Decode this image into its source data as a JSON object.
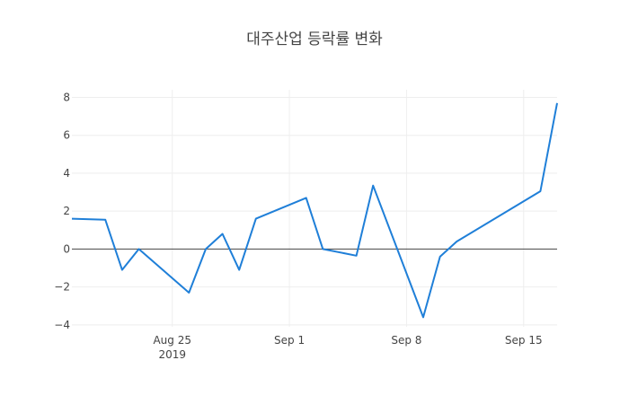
{
  "chart_data": {
    "type": "line",
    "title": "대주산업 등락률 변화",
    "xlabel": "",
    "ylabel": "",
    "x_range": [
      "2019-08-19",
      "2019-09-17"
    ],
    "ylim": [
      -4.1,
      8.4
    ],
    "y_ticks": [
      8,
      6,
      4,
      2,
      0,
      -2,
      -4
    ],
    "y_tick_labels": [
      "8",
      "6",
      "4",
      "2",
      "0",
      "−2",
      "−4"
    ],
    "x_ticks": [
      {
        "date": "2019-08-25",
        "label": "Aug 25",
        "sublabel": "2019"
      },
      {
        "date": "2019-09-01",
        "label": "Sep 1",
        "sublabel": ""
      },
      {
        "date": "2019-09-08",
        "label": "Sep 8",
        "sublabel": ""
      },
      {
        "date": "2019-09-15",
        "label": "Sep 15",
        "sublabel": ""
      }
    ],
    "grid": true,
    "zero_line": true,
    "line_color": "#1f7fd8",
    "series": [
      {
        "x": [
          "2019-08-19",
          "2019-08-21",
          "2019-08-22",
          "2019-08-23",
          "2019-08-26",
          "2019-08-27",
          "2019-08-28",
          "2019-08-29",
          "2019-08-30",
          "2019-09-02",
          "2019-09-03",
          "2019-09-05",
          "2019-09-06",
          "2019-09-09",
          "2019-09-10",
          "2019-09-11",
          "2019-09-16",
          "2019-09-17"
        ],
        "y": [
          1.6,
          1.55,
          -1.1,
          0.0,
          -2.3,
          0.0,
          0.8,
          -1.1,
          1.6,
          2.7,
          0.0,
          -0.35,
          3.35,
          -3.6,
          -0.4,
          0.4,
          3.05,
          7.7
        ]
      }
    ]
  }
}
